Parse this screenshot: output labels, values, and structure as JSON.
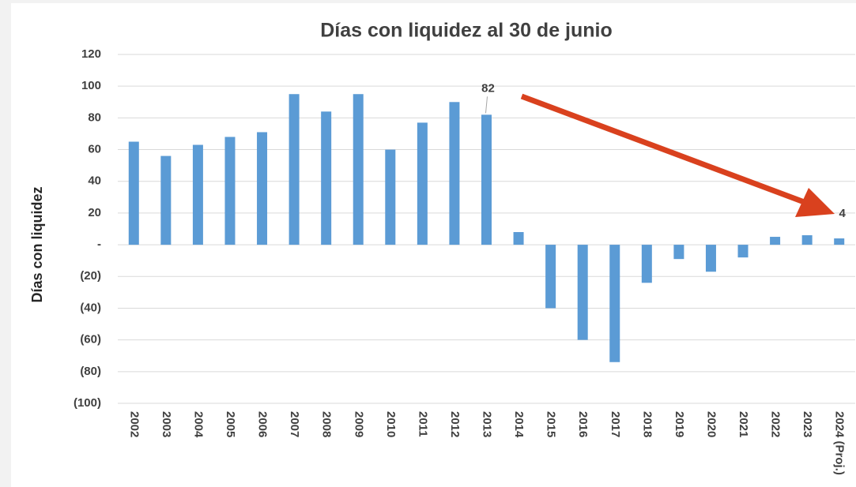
{
  "chart_data": {
    "type": "bar",
    "title": "Días con liquidez al 30 de junio",
    "y_label": "Días con liquidez",
    "categories": [
      "2002",
      "2003",
      "2004",
      "2005",
      "2006",
      "2007",
      "2008",
      "2009",
      "2010",
      "2011",
      "2012",
      "2013",
      "2014",
      "2015",
      "2016",
      "2017",
      "2018",
      "2019",
      "2020",
      "2021",
      "2022",
      "2023",
      "2024 (Proj.)"
    ],
    "values": [
      65,
      56,
      63,
      68,
      71,
      95,
      84,
      95,
      60,
      77,
      90,
      82,
      8,
      -40,
      -60,
      -74,
      -24,
      -9,
      -17,
      -8,
      5,
      6,
      4
    ],
    "value_labels": [
      null,
      null,
      null,
      null,
      null,
      null,
      null,
      null,
      null,
      null,
      null,
      "82",
      null,
      null,
      null,
      null,
      null,
      null,
      null,
      null,
      null,
      null,
      "4"
    ],
    "color": "#5b9bd5",
    "ylim": [
      -100,
      120
    ],
    "yticks": [
      {
        "value": -100,
        "label": "(100)"
      },
      {
        "value": -80,
        "label": "(80)"
      },
      {
        "value": -60,
        "label": "(60)"
      },
      {
        "value": -40,
        "label": "(40)"
      },
      {
        "value": -20,
        "label": "(20)"
      },
      {
        "value": 0,
        "label": "-"
      },
      20,
      40,
      60,
      80,
      100,
      120
    ],
    "grid": true
  }
}
